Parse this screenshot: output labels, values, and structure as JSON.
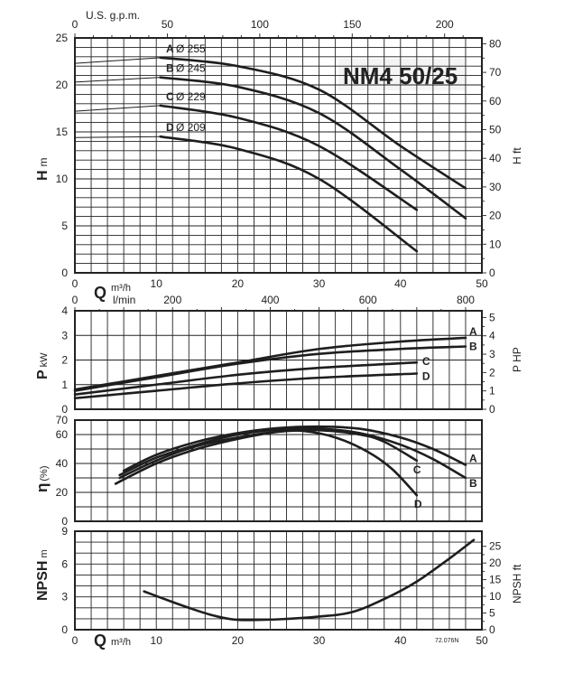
{
  "chart_data": [
    {
      "type": "line",
      "title": "NM4 50/25",
      "xlabel": "Q m³/h",
      "xlabel_top": "U.S. g.p.m.",
      "xlabel_lmin": "l/min",
      "ylabel": "H m",
      "ylabel_right": "H ft",
      "xlim": [
        0,
        50
      ],
      "ylim": [
        0,
        25
      ],
      "x_ticks": [
        0,
        10,
        20,
        30,
        40,
        50
      ],
      "y_ticks": [
        0,
        5,
        10,
        15,
        20,
        25
      ],
      "gpm_ticks": [
        0,
        50,
        100,
        150,
        200
      ],
      "lmin_ticks": [
        0,
        200,
        400,
        600,
        800
      ],
      "ft_ticks": [
        0,
        10,
        20,
        30,
        40,
        50,
        60,
        70,
        80
      ],
      "grid": true,
      "series": [
        {
          "name": "A Ø 255",
          "letter": "A",
          "diameter": "Ø 255",
          "x": [
            0,
            10.5,
            20,
            30,
            40,
            48
          ],
          "y": [
            22.3,
            22.9,
            22,
            19.5,
            13.5,
            9
          ]
        },
        {
          "name": "B Ø 245",
          "letter": "B",
          "diameter": "Ø 245",
          "x": [
            0,
            10.5,
            20,
            30,
            40,
            48
          ],
          "y": [
            20.3,
            20.8,
            19.8,
            17,
            11,
            5.8
          ]
        },
        {
          "name": "C Ø 229",
          "letter": "C",
          "diameter": "Ø 229",
          "x": [
            0,
            10.5,
            20,
            30,
            42
          ],
          "y": [
            17.2,
            17.8,
            16.5,
            13.5,
            6.7
          ]
        },
        {
          "name": "D Ø 209",
          "letter": "D",
          "diameter": "Ø 209",
          "x": [
            0,
            10.5,
            20,
            30,
            42
          ],
          "y": [
            14.4,
            14.5,
            13.2,
            10,
            2.3
          ]
        }
      ]
    },
    {
      "type": "line",
      "ylabel": "P kW",
      "ylabel_right": "P HP",
      "xlim": [
        0,
        50
      ],
      "ylim": [
        0,
        4
      ],
      "y_ticks": [
        0,
        1,
        2,
        3,
        4
      ],
      "hp_ticks": [
        0,
        1,
        2,
        3,
        4,
        5
      ],
      "grid": true,
      "series": [
        {
          "name": "A",
          "x": [
            0,
            10,
            20,
            30,
            40,
            48
          ],
          "y": [
            0.8,
            1.35,
            1.9,
            2.45,
            2.75,
            2.9
          ]
        },
        {
          "name": "B",
          "x": [
            0,
            10,
            20,
            30,
            40,
            48
          ],
          "y": [
            0.75,
            1.3,
            1.85,
            2.25,
            2.45,
            2.55
          ]
        },
        {
          "name": "C",
          "x": [
            0,
            10,
            20,
            30,
            42
          ],
          "y": [
            0.6,
            1.0,
            1.4,
            1.68,
            1.9
          ]
        },
        {
          "name": "D",
          "x": [
            0,
            10,
            20,
            30,
            42
          ],
          "y": [
            0.45,
            0.75,
            1.05,
            1.28,
            1.45
          ]
        }
      ]
    },
    {
      "type": "line",
      "ylabel": "η",
      "ylabel_unit": "(%)",
      "xlim": [
        0,
        50
      ],
      "ylim": [
        0,
        70
      ],
      "y_ticks": [
        0,
        20,
        40,
        60,
        70
      ],
      "grid": true,
      "series": [
        {
          "name": "A",
          "x": [
            6,
            10,
            15,
            20,
            25,
            30,
            35,
            40,
            44,
            48
          ],
          "y": [
            35,
            46,
            55,
            61,
            64.5,
            65.5,
            64,
            58,
            50,
            39
          ]
        },
        {
          "name": "B",
          "x": [
            5.5,
            10,
            15,
            20,
            25,
            30,
            35,
            40,
            44,
            48
          ],
          "y": [
            32,
            44,
            53,
            60,
            63.5,
            64,
            61,
            53,
            43,
            30
          ]
        },
        {
          "name": "C",
          "x": [
            5.5,
            10,
            15,
            20,
            25,
            30,
            35,
            38,
            42
          ],
          "y": [
            30,
            42,
            52,
            58,
            62,
            63,
            60,
            55,
            42
          ]
        },
        {
          "name": "D",
          "x": [
            5,
            10,
            15,
            20,
            25,
            28,
            32,
            36,
            39,
            42
          ],
          "y": [
            26,
            40,
            50,
            57,
            62,
            62.5,
            58,
            48,
            36,
            18
          ]
        }
      ]
    },
    {
      "type": "line",
      "ylabel": "NPSH m",
      "ylabel_right": "NPSH ft",
      "xlabel": "Q m³/h",
      "xlim": [
        0,
        50
      ],
      "ylim": [
        0,
        9
      ],
      "x_ticks": [
        0,
        10,
        20,
        30,
        40,
        50
      ],
      "y_ticks": [
        0,
        3,
        6,
        9
      ],
      "ft_ticks": [
        0,
        5,
        10,
        15,
        20,
        25
      ],
      "grid": true,
      "annotation": "72.076N",
      "series": [
        {
          "x": [
            8.5,
            11,
            14,
            17,
            20,
            25,
            30,
            34,
            38,
            42,
            46,
            49
          ],
          "y": [
            3.5,
            2.8,
            2.0,
            1.3,
            0.9,
            0.95,
            1.2,
            1.6,
            2.8,
            4.4,
            6.5,
            8.2
          ]
        }
      ]
    }
  ]
}
